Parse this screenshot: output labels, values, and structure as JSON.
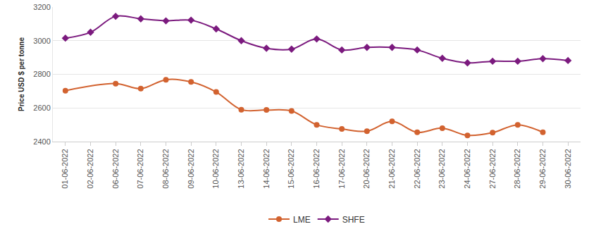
{
  "chart_data": {
    "type": "line",
    "y_label": "Price USD $ per tonne",
    "categories": [
      "01-06-2022",
      "02-06-2022",
      "06-06-2022",
      "07-06-2022",
      "08-06-2022",
      "09-06-2022",
      "10-06-2022",
      "13-06-2022",
      "14-06-2022",
      "15-06-2022",
      "16-06-2022",
      "17-06-2022",
      "20-06-2022",
      "21-06-2022",
      "22-06-2022",
      "23-06-2022",
      "24-06-2022",
      "27-06-2022",
      "28-06-2022",
      "29-06-2022",
      "30-06-2022"
    ],
    "series": [
      {
        "name": "LME",
        "color": "#d2622f",
        "marker": "circle",
        "line_style": "solid",
        "values": [
          2703,
          null,
          2745,
          2715,
          2768,
          2755,
          2695,
          2590,
          2588,
          2582,
          2500,
          2475,
          2462,
          2520,
          2455,
          2480,
          2437,
          2453,
          2500,
          2455,
          null
        ]
      },
      {
        "name": "SHFE",
        "color": "#7b1a7e",
        "marker": "diamond",
        "line_style": "solid",
        "values": [
          3015,
          3050,
          3145,
          3130,
          3118,
          3122,
          3070,
          3000,
          2955,
          2950,
          3010,
          2945,
          2960,
          2960,
          2945,
          2895,
          2868,
          2878,
          2878,
          2893,
          2882
        ]
      }
    ],
    "ylim": [
      2400,
      3200
    ],
    "yticks": [
      2400,
      2600,
      2800,
      3000,
      3200
    ],
    "grid": true,
    "legend": "bottom"
  }
}
